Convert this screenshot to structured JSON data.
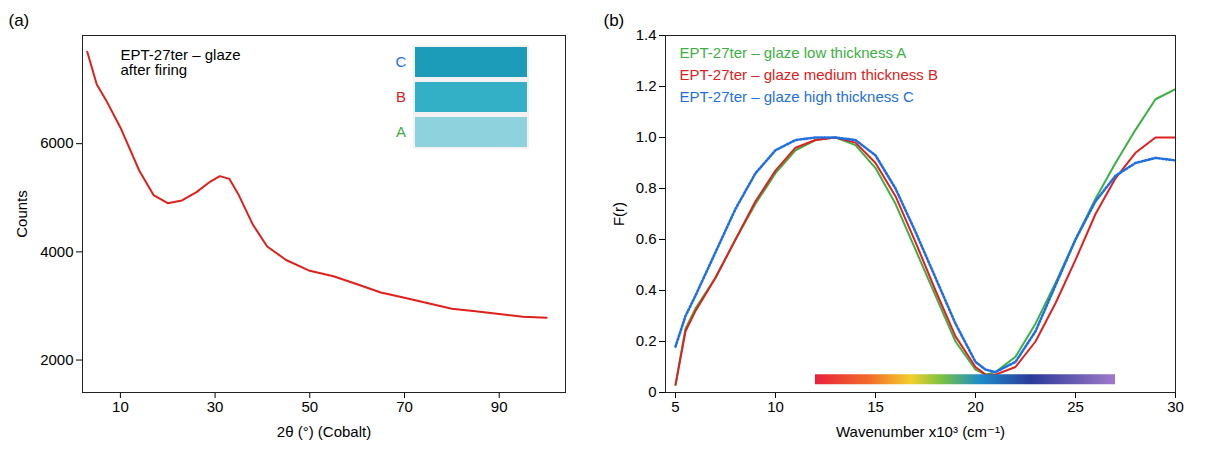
{
  "chart_data": [
    {
      "type": "line",
      "panel": "(a)",
      "annotation": [
        "EPT-27ter – glaze",
        "after firing"
      ],
      "inset_labels": [
        {
          "text": "C",
          "color": "#1f6fe0"
        },
        {
          "text": "B",
          "color": "#e02020"
        },
        {
          "text": "A",
          "color": "#3cb043"
        }
      ],
      "x_label": "2θ (°) (Cobalt)",
      "y_label": "Counts",
      "x": [
        3,
        5,
        7,
        10,
        14,
        17,
        20,
        23,
        26,
        29,
        31,
        33,
        35,
        38,
        41,
        45,
        50,
        55,
        60,
        65,
        70,
        75,
        80,
        85,
        90,
        95,
        100
      ],
      "series": [
        {
          "color": "#e0201b",
          "line_style": "solid",
          "values": [
            7700,
            7100,
            6800,
            6300,
            5500,
            5050,
            4900,
            4950,
            5100,
            5300,
            5400,
            5350,
            5050,
            4500,
            4100,
            3850,
            3650,
            3550,
            3400,
            3250,
            3150,
            3050,
            2950,
            2900,
            2850,
            2800,
            2780
          ]
        }
      ],
      "xlim": [
        2,
        104
      ],
      "xticks": [
        10,
        30,
        50,
        70,
        90
      ],
      "ylim": [
        1400,
        8000
      ],
      "yticks": [
        2000,
        4000,
        6000
      ],
      "grid": false
    },
    {
      "type": "line",
      "panel": "(b)",
      "x_label": "Wavenumber x10³ (cm⁻¹)",
      "y_label": "F(r)",
      "legend": "top-left",
      "x": [
        5,
        5.5,
        6,
        7,
        8,
        9,
        10,
        11,
        12,
        13,
        14,
        15,
        16,
        17,
        18,
        19,
        20,
        20.5,
        21,
        22,
        23,
        24,
        25,
        26,
        27,
        28,
        29,
        30
      ],
      "series": [
        {
          "name": "EPT-27ter – glaze low thickness A",
          "color": "#3cb043",
          "line_style": "solid",
          "values": [
            0.03,
            0.25,
            0.33,
            0.45,
            0.6,
            0.74,
            0.86,
            0.95,
            0.99,
            1.0,
            0.97,
            0.88,
            0.74,
            0.56,
            0.38,
            0.2,
            0.09,
            0.07,
            0.08,
            0.14,
            0.27,
            0.43,
            0.6,
            0.76,
            0.9,
            1.03,
            1.15,
            1.19
          ]
        },
        {
          "name": "EPT-27ter – glaze medium thickness B",
          "color": "#e02020",
          "line_style": "solid",
          "values": [
            0.03,
            0.24,
            0.32,
            0.45,
            0.6,
            0.75,
            0.87,
            0.96,
            0.99,
            1.0,
            0.98,
            0.9,
            0.77,
            0.59,
            0.4,
            0.22,
            0.1,
            0.07,
            0.07,
            0.1,
            0.2,
            0.35,
            0.52,
            0.7,
            0.84,
            0.94,
            1.0,
            1.0
          ]
        },
        {
          "name": "EPT-27ter – glaze high thickness C",
          "color": "#1f6fe0",
          "line_style": "dotted",
          "values": [
            0.18,
            0.3,
            0.38,
            0.55,
            0.72,
            0.86,
            0.95,
            0.99,
            1.0,
            1.0,
            0.99,
            0.93,
            0.8,
            0.63,
            0.45,
            0.27,
            0.12,
            0.09,
            0.08,
            0.12,
            0.24,
            0.42,
            0.6,
            0.75,
            0.85,
            0.9,
            0.92,
            0.91
          ]
        }
      ],
      "spectrum_bar": {
        "x": [
          12,
          27
        ],
        "y": 0.05
      },
      "xlim": [
        4.5,
        30
      ],
      "xticks": [
        5,
        10,
        15,
        20,
        25,
        30
      ],
      "ylim": [
        0,
        1.4
      ],
      "yticks": [
        0,
        0.2,
        0.4,
        0.6,
        0.8,
        {
          "value": 1,
          "label": "1.0"
        },
        1.2,
        1.4
      ],
      "grid": false
    }
  ]
}
